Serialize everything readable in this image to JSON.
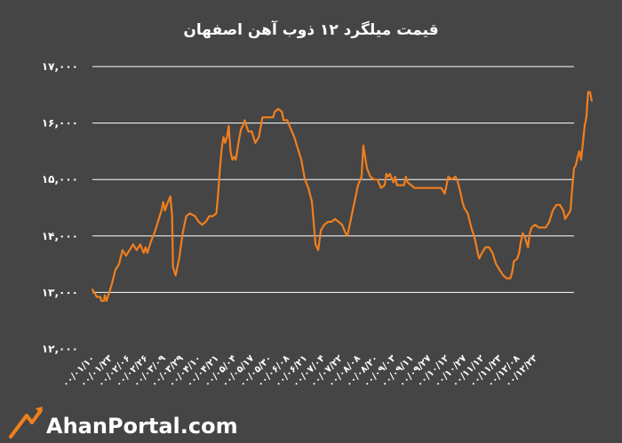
{
  "brand": {
    "name": "AhanPortal.com"
  },
  "chart_data": {
    "type": "line",
    "title": "قیمت میلگرد ۱۲ ذوب آهن اصفهان",
    "xlabel": "",
    "ylabel": "",
    "ylim": [
      12000,
      17000
    ],
    "yticks": [
      12000,
      13000,
      14000,
      15000,
      16000,
      17000
    ],
    "ytick_labels": [
      "۱۲,۰۰۰",
      "۱۳,۰۰۰",
      "۱۴,۰۰۰",
      "۱۵,۰۰۰",
      "۱۶,۰۰۰",
      "۱۷,۰۰۰"
    ],
    "grid": true,
    "legend": "none",
    "line_color": "#f07f1e",
    "x_categories": [
      "۰۰/۰۱/۱۰",
      "۰۰/۰۱/۲۳",
      "۰۰/۰۲/۰۶",
      "۰۰/۰۲/۲۶",
      "۰۰/۰۳/۰۹",
      "۰۰/۰۳/۲۹",
      "۰۰/۰۴/۱۰",
      "۰۰/۰۴/۲۱",
      "۰۰/۰۵/۰۴",
      "۰۰/۰۵/۱۷",
      "۰۰/۰۵/۳۰",
      "۰۰/۰۶/۰۸",
      "۰۰/۰۶/۲۱",
      "۰۰/۰۷/۰۴",
      "۰۰/۰۷/۲۲",
      "۰۰/۰۸/۰۸",
      "۰۰/۰۸/۲۰",
      "۰۰/۰۹/۰۳",
      "۰۰/۰۹/۱۱",
      "۰۰/۰۹/۲۷",
      "۰۰/۱۰/۱۲",
      "۰۰/۱۰/۲۷",
      "۰۰/۱۱/۱۲",
      "۰۰/۱۱/۲۳",
      "۰۰/۱۲/۰۸",
      "۰۰/۱۲/۲۳"
    ],
    "series": [
      {
        "points": [
          [
            0,
            13050
          ],
          [
            0.1,
            13000
          ],
          [
            0.25,
            12920
          ],
          [
            0.45,
            12920
          ],
          [
            0.5,
            12850
          ],
          [
            0.65,
            12850
          ],
          [
            0.7,
            12950
          ],
          [
            0.8,
            12850
          ],
          [
            0.9,
            12950
          ],
          [
            1.1,
            13150
          ],
          [
            1.3,
            13400
          ],
          [
            1.5,
            13500
          ],
          [
            1.7,
            13750
          ],
          [
            1.9,
            13650
          ],
          [
            2.1,
            13750
          ],
          [
            2.3,
            13850
          ],
          [
            2.5,
            13750
          ],
          [
            2.7,
            13850
          ],
          [
            2.9,
            13700
          ],
          [
            3.0,
            13800
          ],
          [
            3.1,
            13700
          ],
          [
            3.3,
            13900
          ],
          [
            3.5,
            14050
          ],
          [
            3.7,
            14250
          ],
          [
            3.9,
            14450
          ],
          [
            4.0,
            14600
          ],
          [
            4.1,
            14450
          ],
          [
            4.2,
            14550
          ],
          [
            4.4,
            14700
          ],
          [
            4.5,
            14350
          ],
          [
            4.55,
            13450
          ],
          [
            4.7,
            13300
          ],
          [
            4.9,
            13600
          ],
          [
            5.1,
            14050
          ],
          [
            5.3,
            14350
          ],
          [
            5.5,
            14400
          ],
          [
            5.8,
            14350
          ],
          [
            6.0,
            14250
          ],
          [
            6.2,
            14200
          ],
          [
            6.4,
            14250
          ],
          [
            6.6,
            14350
          ],
          [
            6.8,
            14350
          ],
          [
            7.0,
            14400
          ],
          [
            7.1,
            14750
          ],
          [
            7.2,
            15200
          ],
          [
            7.3,
            15550
          ],
          [
            7.4,
            15750
          ],
          [
            7.5,
            15650
          ],
          [
            7.6,
            15750
          ],
          [
            7.7,
            15950
          ],
          [
            7.8,
            15500
          ],
          [
            7.9,
            15350
          ],
          [
            8.0,
            15400
          ],
          [
            8.1,
            15350
          ],
          [
            8.2,
            15550
          ],
          [
            8.3,
            15750
          ],
          [
            8.4,
            15900
          ],
          [
            8.5,
            15950
          ],
          [
            8.6,
            16050
          ],
          [
            8.7,
            15950
          ],
          [
            8.8,
            15850
          ],
          [
            9.0,
            15850
          ],
          [
            9.2,
            15650
          ],
          [
            9.4,
            15750
          ],
          [
            9.6,
            16100
          ],
          [
            9.8,
            16100
          ],
          [
            10.0,
            16100
          ],
          [
            10.2,
            16100
          ],
          [
            10.3,
            16200
          ],
          [
            10.5,
            16250
          ],
          [
            10.7,
            16200
          ],
          [
            10.8,
            16050
          ],
          [
            11.0,
            16050
          ],
          [
            11.2,
            15900
          ],
          [
            11.4,
            15750
          ],
          [
            11.6,
            15550
          ],
          [
            11.8,
            15350
          ],
          [
            12.0,
            15000
          ],
          [
            12.2,
            14850
          ],
          [
            12.4,
            14600
          ],
          [
            12.6,
            13850
          ],
          [
            12.75,
            13750
          ],
          [
            12.9,
            14100
          ],
          [
            13.1,
            14200
          ],
          [
            13.3,
            14250
          ],
          [
            13.5,
            14250
          ],
          [
            13.7,
            14300
          ],
          [
            13.9,
            14250
          ],
          [
            14.1,
            14200
          ],
          [
            14.3,
            14050
          ],
          [
            14.4,
            14000
          ],
          [
            14.6,
            14300
          ],
          [
            14.8,
            14600
          ],
          [
            15.0,
            14900
          ],
          [
            15.2,
            15050
          ],
          [
            15.3,
            15600
          ],
          [
            15.4,
            15400
          ],
          [
            15.5,
            15200
          ],
          [
            15.7,
            15050
          ],
          [
            15.9,
            15000
          ],
          [
            16.1,
            15000
          ],
          [
            16.3,
            14850
          ],
          [
            16.5,
            14900
          ],
          [
            16.6,
            15100
          ],
          [
            16.7,
            15050
          ],
          [
            16.8,
            15100
          ],
          [
            17.0,
            14950
          ],
          [
            17.1,
            15050
          ],
          [
            17.2,
            14900
          ],
          [
            17.4,
            14900
          ],
          [
            17.6,
            14900
          ],
          [
            17.7,
            15050
          ],
          [
            17.8,
            14950
          ],
          [
            18.0,
            14900
          ],
          [
            18.2,
            14850
          ],
          [
            18.5,
            14850
          ],
          [
            19.0,
            14850
          ],
          [
            19.4,
            14850
          ],
          [
            19.5,
            14850
          ],
          [
            19.7,
            14850
          ],
          [
            19.9,
            14750
          ],
          [
            20.0,
            14900
          ],
          [
            20.1,
            15050
          ],
          [
            20.3,
            15000
          ],
          [
            20.5,
            15050
          ],
          [
            20.6,
            15000
          ],
          [
            20.8,
            14750
          ],
          [
            20.9,
            14600
          ],
          [
            21.0,
            14500
          ],
          [
            21.2,
            14400
          ],
          [
            21.4,
            14150
          ],
          [
            21.6,
            13950
          ],
          [
            21.8,
            13650
          ],
          [
            21.85,
            13600
          ],
          [
            22.0,
            13700
          ],
          [
            22.2,
            13800
          ],
          [
            22.4,
            13800
          ],
          [
            22.6,
            13700
          ],
          [
            22.8,
            13500
          ],
          [
            23.0,
            13400
          ],
          [
            23.2,
            13300
          ],
          [
            23.4,
            13250
          ],
          [
            23.6,
            13250
          ],
          [
            23.7,
            13350
          ],
          [
            23.8,
            13550
          ],
          [
            24.0,
            13600
          ],
          [
            24.1,
            13700
          ],
          [
            24.2,
            13900
          ],
          [
            24.3,
            14050
          ],
          [
            24.4,
            14000
          ],
          [
            24.5,
            13900
          ],
          [
            24.6,
            13800
          ],
          [
            24.7,
            14050
          ],
          [
            24.8,
            14150
          ],
          [
            25.0,
            14200
          ],
          [
            25.2,
            14150
          ],
          [
            25.4,
            14150
          ],
          [
            25.6,
            14150
          ],
          [
            25.8,
            14250
          ],
          [
            26.0,
            14450
          ],
          [
            26.2,
            14550
          ],
          [
            26.4,
            14550
          ],
          [
            26.6,
            14450
          ],
          [
            26.7,
            14300
          ],
          [
            26.8,
            14350
          ],
          [
            27.0,
            14450
          ],
          [
            27.1,
            14850
          ],
          [
            27.2,
            15200
          ],
          [
            27.3,
            15250
          ],
          [
            27.4,
            15400
          ],
          [
            27.5,
            15500
          ],
          [
            27.6,
            15350
          ],
          [
            27.7,
            15650
          ],
          [
            27.8,
            15950
          ],
          [
            27.9,
            16100
          ],
          [
            28.0,
            16550
          ],
          [
            28.1,
            16550
          ],
          [
            28.2,
            16400
          ]
        ]
      }
    ]
  }
}
